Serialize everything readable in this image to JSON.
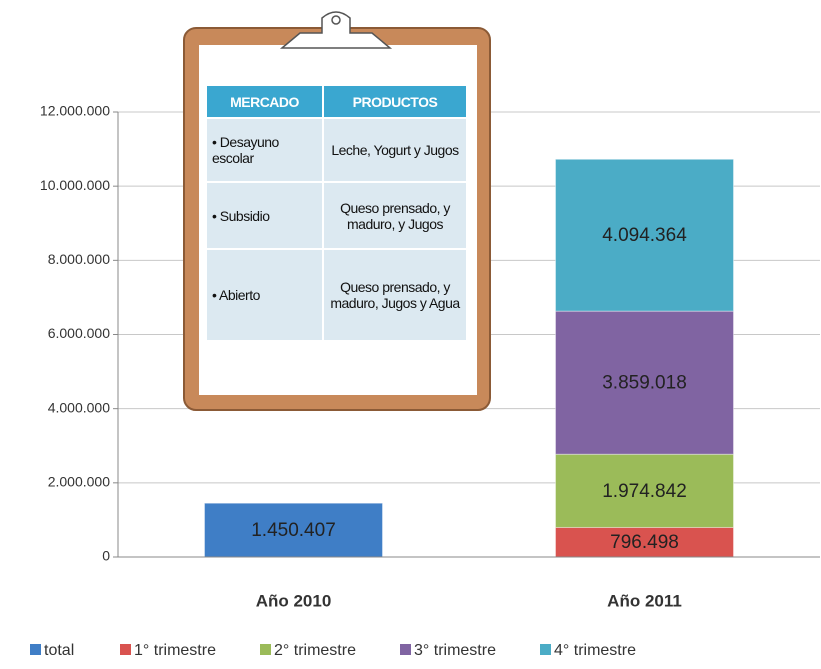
{
  "chart_data": {
    "type": "stacked_bar",
    "categories": [
      "Año 2010",
      "Año 2011"
    ],
    "series": [
      {
        "name": "total",
        "color": "#3f7ec6",
        "values": [
          1450407,
          null
        ],
        "value_labels": [
          "1.450.407",
          null
        ]
      },
      {
        "name": "1° trimestre",
        "color": "#d9534f",
        "values": [
          null,
          796498
        ],
        "value_labels": [
          null,
          "796.498"
        ]
      },
      {
        "name": "2° trimestre",
        "color": "#9bbb59",
        "values": [
          null,
          1974842
        ],
        "value_labels": [
          null,
          "1.974.842"
        ]
      },
      {
        "name": "3° trimestre",
        "color": "#8064a2",
        "values": [
          null,
          3859018
        ],
        "value_labels": [
          null,
          "3.859.018"
        ]
      },
      {
        "name": "4° trimestre",
        "color": "#4bacc6",
        "values": [
          null,
          4094364
        ],
        "value_labels": [
          null,
          "4.094.364"
        ]
      }
    ],
    "ylim": [
      0,
      12000000
    ],
    "yticks": [
      0,
      {
        "value": 2000000,
        "label": "2.000.000"
      },
      {
        "value": 4000000,
        "label": "4.000.000"
      },
      {
        "value": 6000000,
        "label": "6.000.000"
      },
      {
        "value": 8000000,
        "label": "8.000.000"
      },
      {
        "value": 10000000,
        "label": "10.000.000"
      },
      {
        "value": 12000000,
        "label": "12.000.000"
      }
    ],
    "grid": true,
    "legend": "bottom"
  },
  "table": {
    "header": [
      "MERCADO",
      "PRODUCTOS"
    ],
    "rows": [
      [
        "• Desayuno escolar",
        "Leche, Yogurt y Jugos"
      ],
      [
        "• Subsidio",
        "Queso prensado, y maduro, y Jugos"
      ],
      [
        "• Abierto",
        "Queso prensado, y maduro, Jugos y Agua"
      ]
    ]
  }
}
